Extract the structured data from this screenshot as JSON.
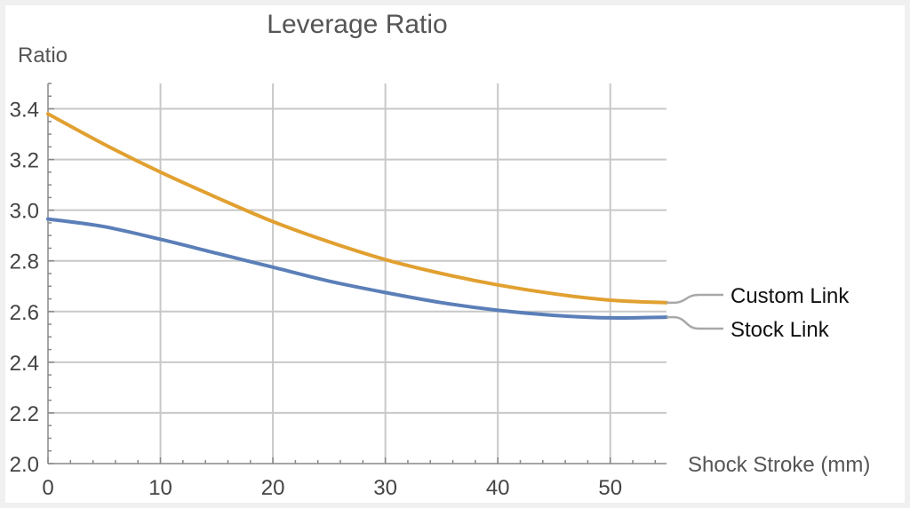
{
  "chart_data": {
    "type": "line",
    "title": "Leverage Ratio",
    "ylabel": "Ratio",
    "xlabel": "Shock Stroke (mm)",
    "xlim": [
      0,
      55
    ],
    "ylim": [
      2.0,
      3.5
    ],
    "xticks": [
      0,
      10,
      20,
      30,
      40,
      50
    ],
    "yticks": [
      2.0,
      2.2,
      2.4,
      2.6,
      2.8,
      3.0,
      3.2,
      3.4
    ],
    "grid": true,
    "legend": "right",
    "series": [
      {
        "name": "Custom Link",
        "color": "#e1a030",
        "x": [
          0,
          5,
          10,
          15,
          20,
          25,
          30,
          35,
          40,
          45,
          50,
          55
        ],
        "y": [
          3.38,
          3.26,
          3.15,
          3.05,
          2.955,
          2.875,
          2.805,
          2.75,
          2.705,
          2.67,
          2.645,
          2.635
        ]
      },
      {
        "name": "Stock Link",
        "color": "#5b7fb8",
        "x": [
          0,
          5,
          10,
          15,
          20,
          25,
          30,
          35,
          40,
          45,
          50,
          55
        ],
        "y": [
          2.965,
          2.935,
          2.885,
          2.83,
          2.775,
          2.72,
          2.675,
          2.635,
          2.605,
          2.585,
          2.575,
          2.578
        ]
      }
    ]
  }
}
